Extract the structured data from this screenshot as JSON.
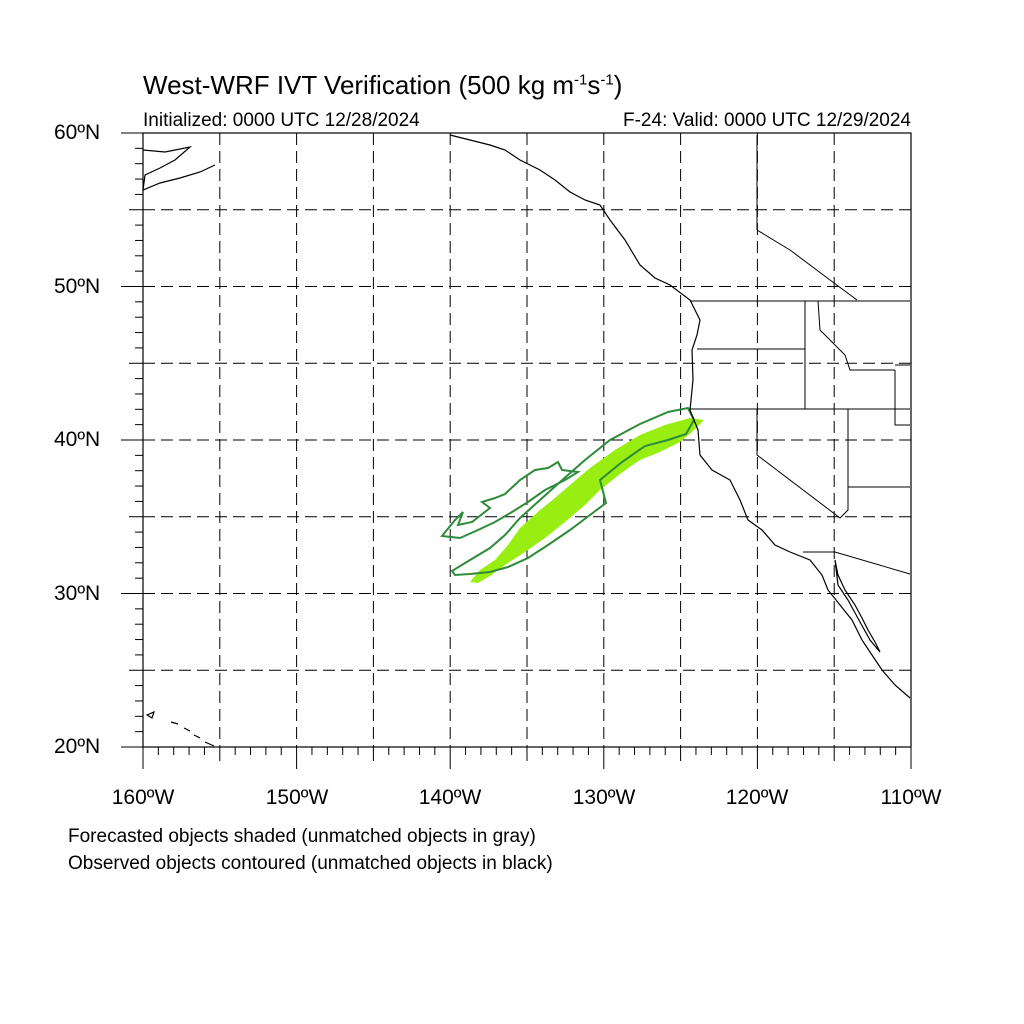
{
  "title": {
    "main": "West-WRF IVT Verification (500 kg m",
    "exp1": "-1",
    "mid": "s",
    "exp2": "-1",
    "end": ")"
  },
  "initialized": "Initialized: 0000 UTC 12/28/2024",
  "valid": "F-24: Valid: 0000 UTC 12/29/2024",
  "lat_labels": [
    "60ºN",
    "50ºN",
    "40ºN",
    "30ºN",
    "20ºN"
  ],
  "lon_labels": [
    "160ºW",
    "150ºW",
    "140ºW",
    "130ºW",
    "120ºW",
    "110ºW"
  ],
  "notes": {
    "forecast": "Forecasted objects shaded (unmatched objects in gray)",
    "observed": "Observed objects contoured (unmatched objects in black)"
  },
  "map": {
    "lon_range": [
      -160,
      -110
    ],
    "lat_range": [
      20,
      60
    ],
    "grid_spacing_deg": 5,
    "grid_style": "dashed",
    "colors": {
      "forecast_fill": "#99ee11",
      "observed_contour": "#2e8b3a",
      "coastline": "#000000"
    }
  }
}
